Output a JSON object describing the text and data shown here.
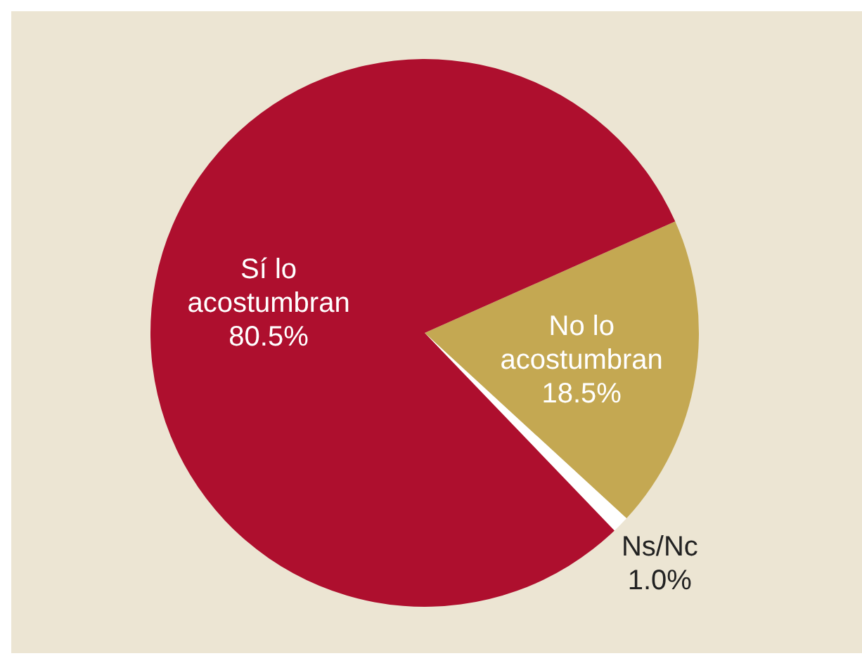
{
  "chart_data": {
    "type": "pie",
    "categories": [
      "No lo acostumbran",
      "Ns/Nc",
      "Sí lo acostumbran"
    ],
    "values": [
      18.5,
      1.0,
      80.5
    ],
    "value_labels": [
      "18.5%",
      "1.0%",
      "80.5%"
    ],
    "colors": [
      "#c4a852",
      "#ffffff",
      "#ae0f2e"
    ]
  }
}
